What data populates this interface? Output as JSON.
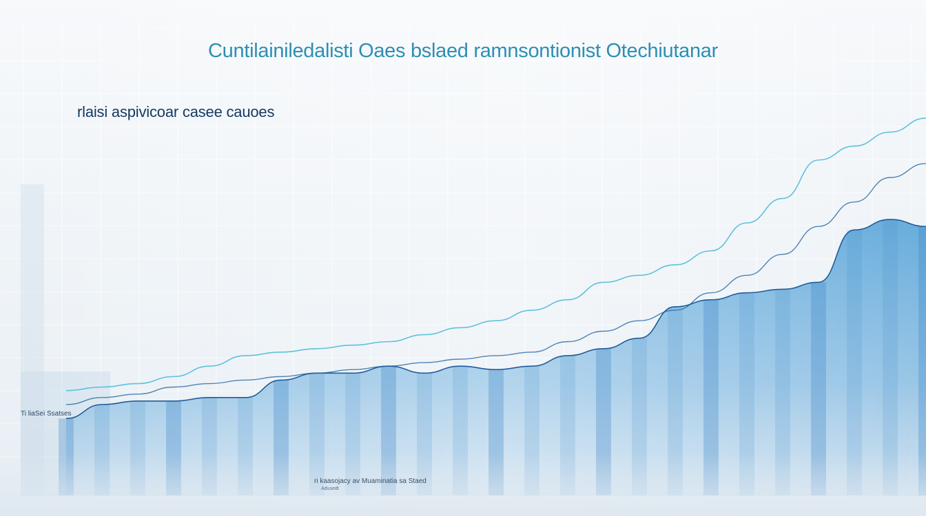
{
  "chart_data": {
    "type": "area",
    "title": "Cuntilainiledalisti Oaes bslaed ramnsontionist Otechiutanar",
    "subtitle": "rlaisi aspivicoar casee cauoes",
    "annotation_left": "Ti liaSei Ssatses",
    "caption": "ri kaasojacy av Muaminatia sa Staed",
    "caption_sub": "Adusedt",
    "x": [
      0,
      1,
      2,
      3,
      4,
      5,
      6,
      7,
      8,
      9,
      10,
      11,
      12,
      13,
      14,
      15,
      16,
      17,
      18,
      19,
      20,
      21,
      22,
      23,
      24
    ],
    "series": [
      {
        "values": [
          22,
          26,
          27,
          27,
          28,
          28,
          33,
          35,
          35,
          37,
          35,
          37,
          36,
          37,
          40,
          42,
          45,
          54,
          56,
          58,
          59,
          61,
          76,
          79,
          77
        ]
      },
      {
        "values": [
          30,
          31,
          32,
          34,
          37,
          40,
          41,
          42,
          43,
          44,
          46,
          48,
          50,
          53,
          56,
          61,
          63,
          66,
          70,
          78,
          85,
          96,
          100,
          104,
          108
        ]
      },
      {
        "values": [
          26,
          28,
          29,
          31,
          32,
          33,
          34,
          35,
          36,
          37,
          38,
          39,
          40,
          41,
          44,
          47,
          50,
          53,
          58,
          63,
          69,
          77,
          84,
          91,
          95
        ]
      }
    ],
    "ylim": [
      0,
      130
    ],
    "grid": true,
    "colors": {
      "title": "#2d8fb3",
      "subtitle": "#163a63",
      "area_top": "#6aaedc",
      "area_bottom": "#a9cde8",
      "bars": "#3d86c6",
      "line_primary": "#5fc0dc",
      "line_secondary": "#2f6ea8"
    }
  }
}
